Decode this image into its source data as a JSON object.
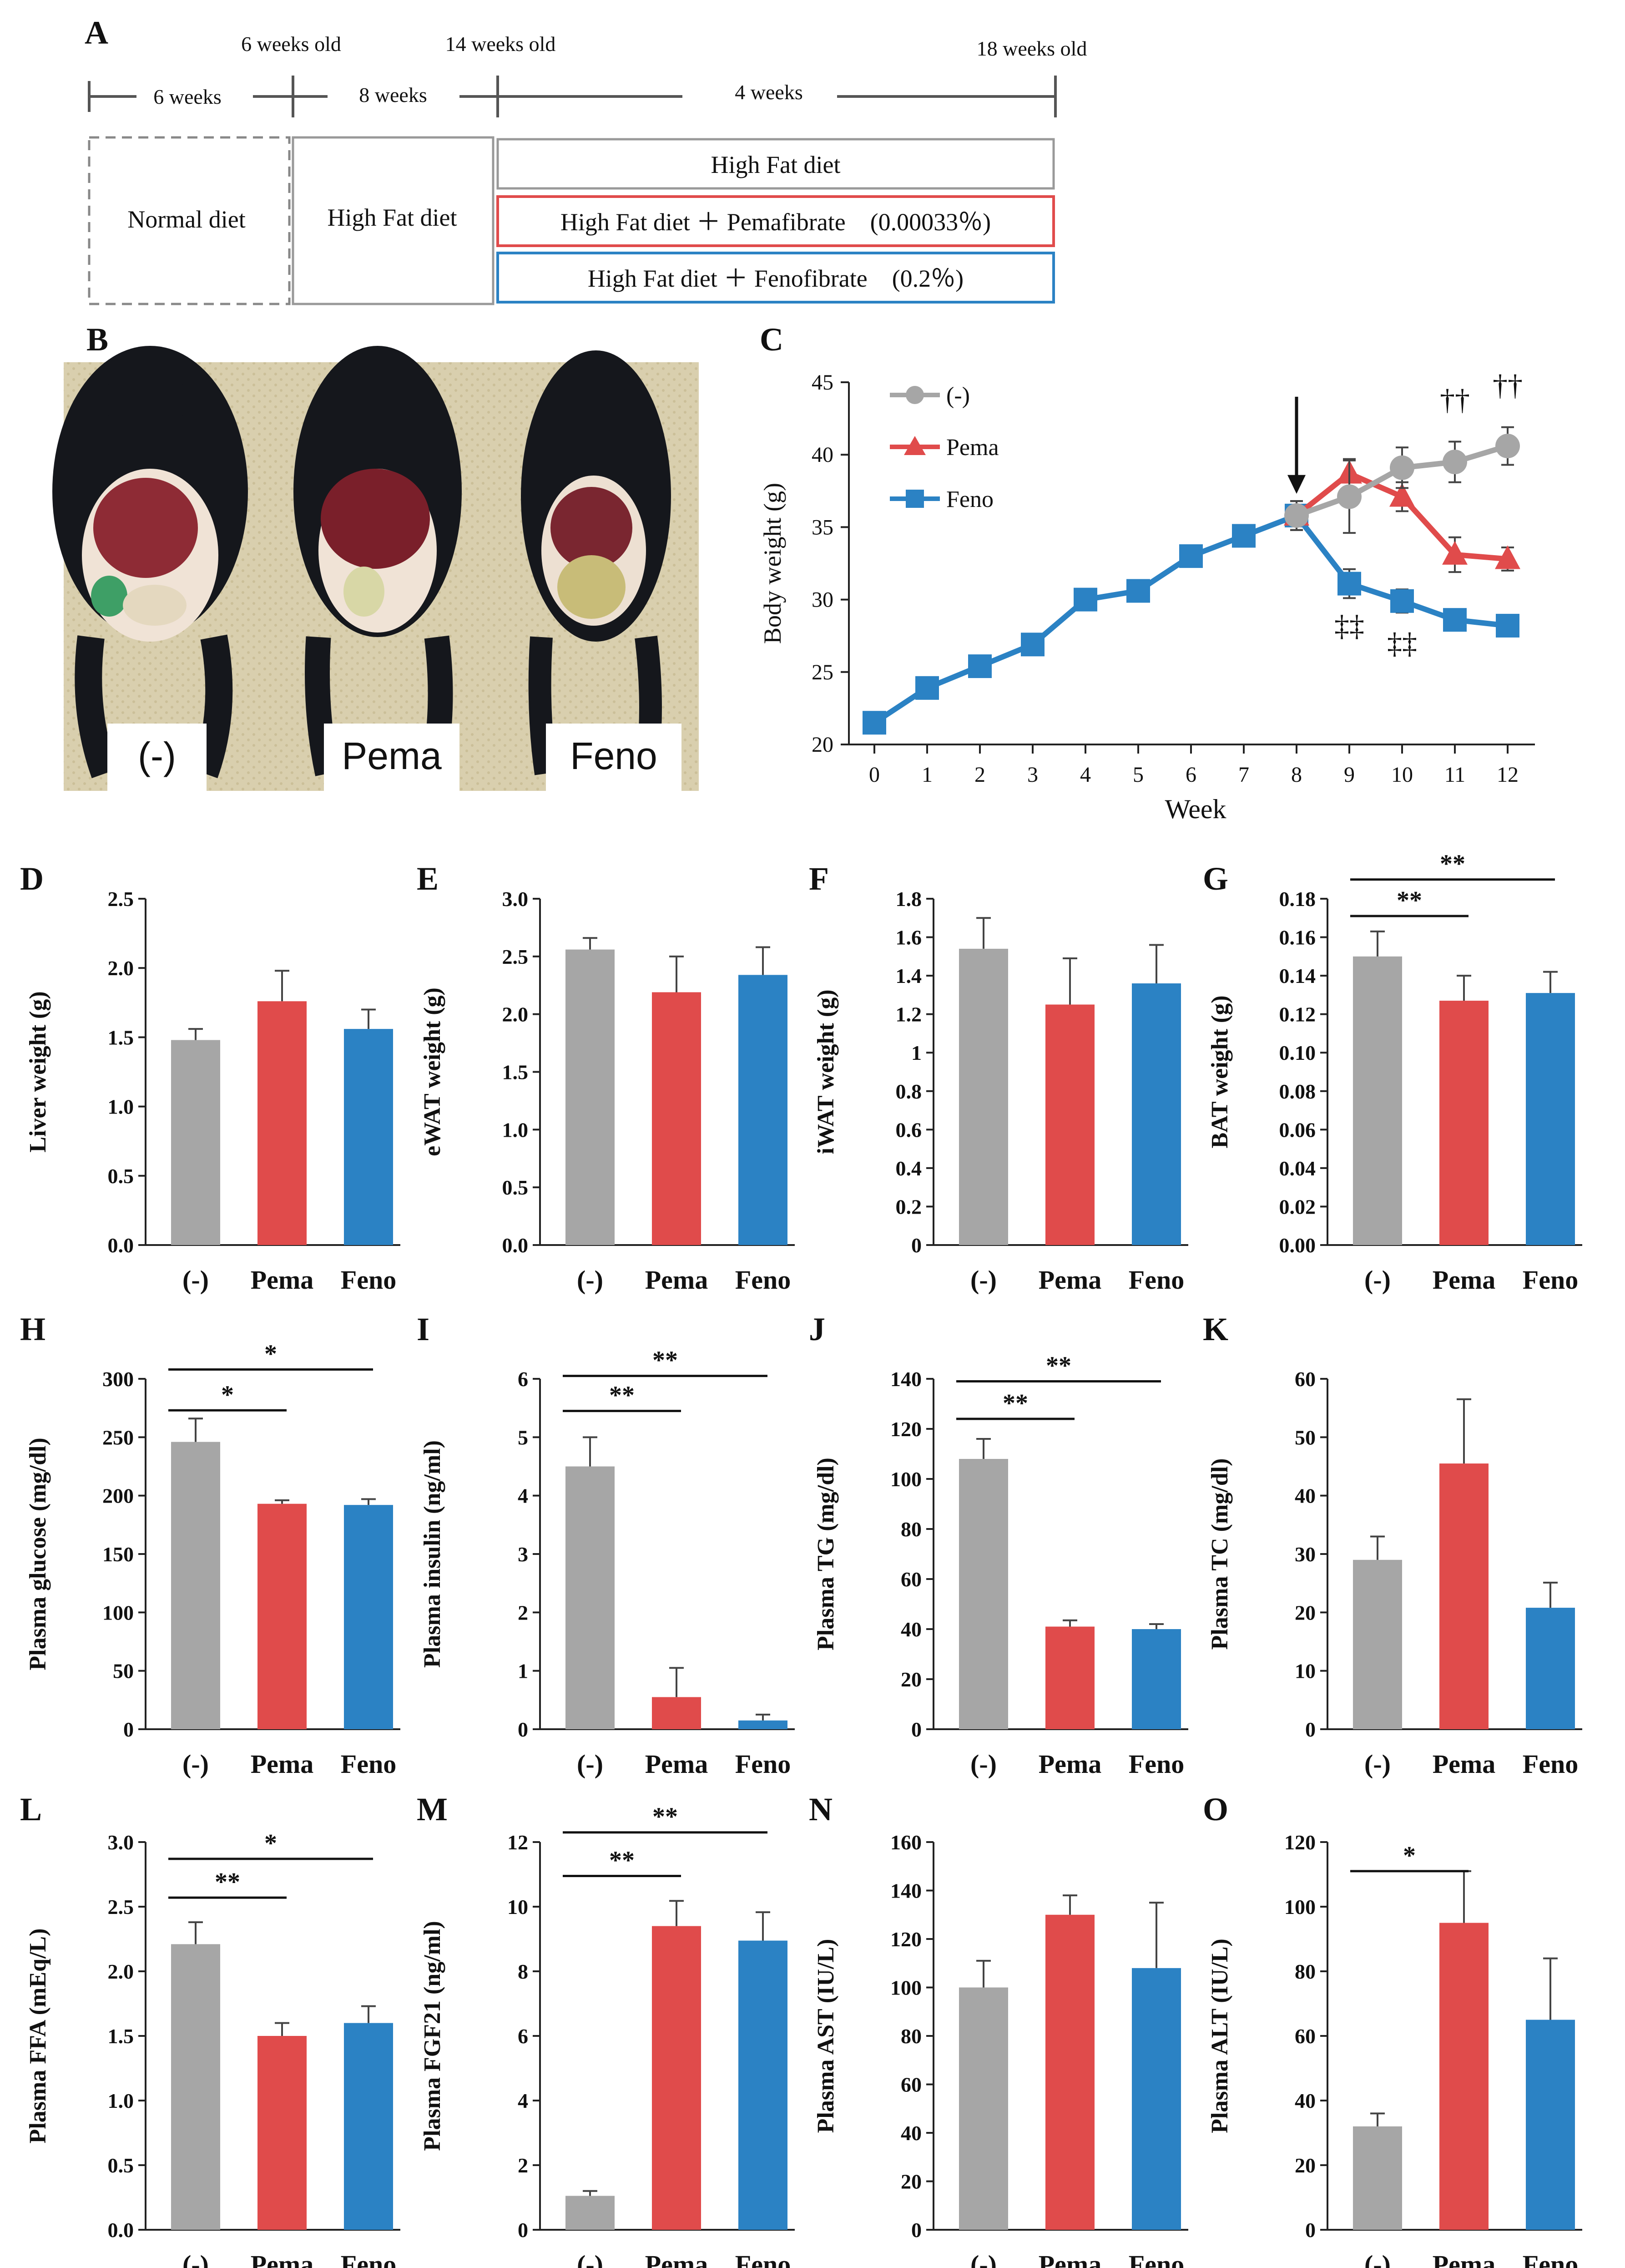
{
  "colors": {
    "grey": "#A6A6A6",
    "red": "#E04B4B",
    "blue": "#2B82C4",
    "axis": "#222222"
  },
  "panelA": {
    "letter": "A",
    "timeline": {
      "marks": [
        "6 weeks old",
        "14 weeks old",
        "18 weeks old"
      ],
      "durations": [
        "6 weeks",
        "8 weeks",
        "4 weeks"
      ]
    },
    "boxes": {
      "normal": "Normal diet",
      "hfd1": "High Fat diet",
      "hfd2": "High Fat diet",
      "pema": "High Fat diet ＋ Pemafibrate　(0.00033％)",
      "feno": "High Fat diet ＋ Fenofibrate　(0.2％)"
    }
  },
  "panelB": {
    "letter": "B",
    "labels": [
      "(-)",
      "Pema",
      "Feno"
    ]
  },
  "panelC": {
    "letter": "C",
    "chart_data": {
      "type": "line",
      "xlabel": "Week",
      "ylabel": "Body weight (g)",
      "ylim": [
        20,
        45
      ],
      "yticks": [
        20,
        25,
        30,
        35,
        40,
        45
      ],
      "x": [
        0,
        1,
        2,
        3,
        4,
        5,
        6,
        7,
        8,
        9,
        10,
        11,
        12
      ],
      "legend": [
        "(-)",
        "Pema",
        "Feno"
      ],
      "series": [
        {
          "name": "Feno",
          "color": "blue",
          "marker": "square",
          "x": [
            0,
            1,
            2,
            3,
            4,
            5,
            6,
            7,
            8,
            9,
            10,
            11,
            12
          ],
          "y": [
            21.5,
            23.9,
            25.4,
            26.9,
            30.0,
            30.6,
            33.0,
            34.4,
            35.8,
            31.1,
            29.9,
            28.6,
            28.2
          ],
          "err": [
            0.5,
            0.5,
            0.5,
            0.5,
            0.5,
            0.5,
            0.6,
            0.7,
            1.0,
            1.0,
            0.8,
            0.6,
            0.6
          ]
        },
        {
          "name": "Pema",
          "color": "red",
          "marker": "triangle",
          "x": [
            8,
            9,
            10,
            11,
            12
          ],
          "y": [
            35.8,
            38.7,
            37.1,
            33.1,
            32.8
          ],
          "err": [
            1.0,
            1.0,
            1.0,
            1.2,
            0.8
          ]
        },
        {
          "name": "(-)",
          "color": "grey",
          "marker": "circle",
          "x": [
            8,
            9,
            10,
            11,
            12
          ],
          "y": [
            35.8,
            37.1,
            39.1,
            39.5,
            40.6
          ],
          "err": [
            1.0,
            2.5,
            1.4,
            1.4,
            1.3
          ]
        }
      ],
      "arrow_at_week": 8,
      "annotations": [
        {
          "text": "††",
          "x": 11,
          "y": 43.1
        },
        {
          "text": "††",
          "x": 12,
          "y": 44.1
        },
        {
          "text": "‡‡",
          "x": 9,
          "y": 27.5
        },
        {
          "text": "‡‡",
          "x": 10,
          "y": 26.3
        }
      ]
    }
  },
  "bar_panels": [
    {
      "letter": "D",
      "chart_data": {
        "type": "bar",
        "ylabel": "Liver weight (g)",
        "categories": [
          "(-)",
          "Pema",
          "Feno"
        ],
        "values": [
          1.48,
          1.76,
          1.56
        ],
        "err": [
          0.08,
          0.22,
          0.14
        ],
        "ylim": [
          0,
          2.5
        ],
        "yticks": [
          "0.0",
          "0.5",
          "1.0",
          "1.5",
          "2.0",
          "2.5"
        ],
        "sig": []
      }
    },
    {
      "letter": "E",
      "chart_data": {
        "type": "bar",
        "ylabel": "eWAT weight (g)",
        "categories": [
          "(-)",
          "Pema",
          "Feno"
        ],
        "values": [
          2.56,
          2.19,
          2.34
        ],
        "err": [
          0.1,
          0.31,
          0.24
        ],
        "ylim": [
          0,
          3.0
        ],
        "yticks": [
          "0.0",
          "0.5",
          "1.0",
          "1.5",
          "2.0",
          "2.5",
          "3.0"
        ],
        "sig": []
      }
    },
    {
      "letter": "F",
      "chart_data": {
        "type": "bar",
        "ylabel": "iWAT weight (g)",
        "categories": [
          "(-)",
          "Pema",
          "Feno"
        ],
        "values": [
          1.54,
          1.25,
          1.36
        ],
        "err": [
          0.16,
          0.24,
          0.2
        ],
        "ylim": [
          0,
          1.8
        ],
        "yticks": [
          "0",
          "0.2",
          "0.4",
          "0.6",
          "0.8",
          "1",
          "1.2",
          "1.4",
          "1.6",
          "1.8"
        ],
        "sig": []
      }
    },
    {
      "letter": "G",
      "chart_data": {
        "type": "bar",
        "ylabel": "BAT weight (g)",
        "categories": [
          "(-)",
          "Pema",
          "Feno"
        ],
        "values": [
          0.15,
          0.127,
          0.131
        ],
        "err": [
          0.013,
          0.013,
          0.011
        ],
        "ylim": [
          0,
          0.18
        ],
        "yticks": [
          "0.00",
          "0.02",
          "0.04",
          "0.06",
          "0.08",
          "0.10",
          "0.12",
          "0.14",
          "0.16",
          "0.18"
        ],
        "sig": [
          {
            "from": 0,
            "to": 1,
            "label": "**",
            "level": 0.171
          },
          {
            "from": 0,
            "to": 2,
            "label": "**",
            "level": 0.19
          }
        ]
      }
    },
    {
      "letter": "H",
      "chart_data": {
        "type": "bar",
        "ylabel": "Plasma glucose (mg/dl)",
        "categories": [
          "(-)",
          "Pema",
          "Feno"
        ],
        "values": [
          246,
          193,
          192
        ],
        "err": [
          20,
          3,
          5
        ],
        "ylim": [
          0,
          300
        ],
        "yticks": [
          "0",
          "50",
          "100",
          "150",
          "200",
          "250",
          "300"
        ],
        "sig": [
          {
            "from": 0,
            "to": 1,
            "label": "*",
            "level": 273
          },
          {
            "from": 0,
            "to": 2,
            "label": "*",
            "level": 308
          }
        ]
      }
    },
    {
      "letter": "I",
      "chart_data": {
        "type": "bar",
        "ylabel": "Plasma insulin (ng/ml)",
        "categories": [
          "(-)",
          "Pema",
          "Feno"
        ],
        "values": [
          4.5,
          0.55,
          0.15
        ],
        "err": [
          0.5,
          0.5,
          0.1
        ],
        "ylim": [
          0,
          6
        ],
        "yticks": [
          "0",
          "1",
          "2",
          "3",
          "4",
          "5",
          "6"
        ],
        "sig": [
          {
            "from": 0,
            "to": 1,
            "label": "**",
            "level": 5.45
          },
          {
            "from": 0,
            "to": 2,
            "label": "**",
            "level": 6.05
          }
        ]
      }
    },
    {
      "letter": "J",
      "chart_data": {
        "type": "bar",
        "ylabel": "Plasma TG (mg/dl)",
        "categories": [
          "(-)",
          "Pema",
          "Feno"
        ],
        "values": [
          108,
          41,
          40
        ],
        "err": [
          8,
          2.5,
          2
        ],
        "ylim": [
          0,
          140
        ],
        "yticks": [
          "0",
          "20",
          "40",
          "60",
          "80",
          "100",
          "120",
          "140"
        ],
        "sig": [
          {
            "from": 0,
            "to": 1,
            "label": "**",
            "level": 124
          },
          {
            "from": 0,
            "to": 2,
            "label": "**",
            "level": 139
          }
        ]
      }
    },
    {
      "letter": "K",
      "chart_data": {
        "type": "bar",
        "ylabel": "Plasma TC (mg/dl)",
        "categories": [
          "(-)",
          "Pema",
          "Feno"
        ],
        "values": [
          29,
          45.5,
          20.8
        ],
        "err": [
          4,
          11,
          4.3
        ],
        "ylim": [
          0,
          60
        ],
        "yticks": [
          "0",
          "10",
          "20",
          "30",
          "40",
          "50",
          "60"
        ],
        "sig": []
      }
    },
    {
      "letter": "L",
      "chart_data": {
        "type": "bar",
        "ylabel": "Plasma FFA (mEq/L)",
        "categories": [
          "(-)",
          "Pema",
          "Feno"
        ],
        "values": [
          2.21,
          1.5,
          1.6
        ],
        "err": [
          0.17,
          0.1,
          0.13
        ],
        "ylim": [
          0,
          3.0
        ],
        "yticks": [
          "0.0",
          "0.5",
          "1.0",
          "1.5",
          "2.0",
          "2.5",
          "3.0"
        ],
        "sig": [
          {
            "from": 0,
            "to": 1,
            "label": "**",
            "level": 2.57
          },
          {
            "from": 0,
            "to": 2,
            "label": "*",
            "level": 2.87
          }
        ]
      }
    },
    {
      "letter": "M",
      "chart_data": {
        "type": "bar",
        "ylabel": "Plasma FGF21 (ng/ml)",
        "categories": [
          "(-)",
          "Pema",
          "Feno"
        ],
        "values": [
          1.05,
          9.4,
          8.95
        ],
        "err": [
          0.15,
          0.78,
          0.88
        ],
        "ylim": [
          0,
          12
        ],
        "yticks": [
          "0",
          "2",
          "4",
          "6",
          "8",
          "10",
          "12"
        ],
        "sig": [
          {
            "from": 0,
            "to": 1,
            "label": "**",
            "level": 10.95
          },
          {
            "from": 0,
            "to": 2,
            "label": "**",
            "level": 12.3
          }
        ]
      }
    },
    {
      "letter": "N",
      "chart_data": {
        "type": "bar",
        "ylabel": "Plasma AST (IU/L)",
        "categories": [
          "(-)",
          "Pema",
          "Feno"
        ],
        "values": [
          100,
          130,
          108
        ],
        "err": [
          11,
          8,
          27
        ],
        "ylim": [
          0,
          160
        ],
        "yticks": [
          "0",
          "20",
          "40",
          "60",
          "80",
          "100",
          "120",
          "140",
          "160"
        ],
        "sig": []
      }
    },
    {
      "letter": "O",
      "chart_data": {
        "type": "bar",
        "ylabel": "Plasma ALT (IU/L)",
        "categories": [
          "(-)",
          "Pema",
          "Feno"
        ],
        "values": [
          32,
          95,
          65
        ],
        "err": [
          4,
          16,
          19
        ],
        "ylim": [
          0,
          120
        ],
        "yticks": [
          "0",
          "20",
          "40",
          "60",
          "80",
          "100",
          "120"
        ],
        "sig": [
          {
            "from": 0,
            "to": 1,
            "label": "*",
            "level": 111
          }
        ]
      }
    }
  ]
}
